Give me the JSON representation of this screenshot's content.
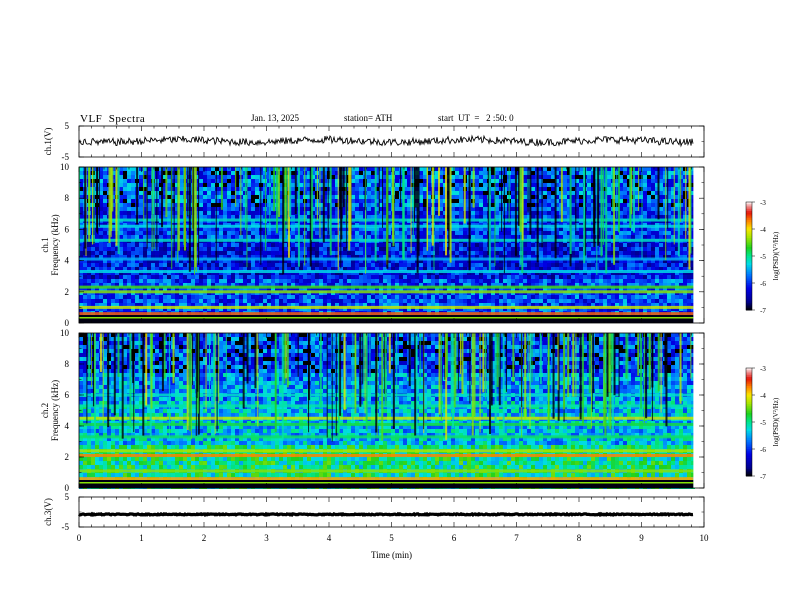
{
  "header": {
    "title": "VLF  Spectra",
    "date": "Jan. 13, 2025",
    "station": "station= ATH",
    "start": "start  UT  =   2 :50: 0"
  },
  "chart_data": [
    {
      "type": "line",
      "panel": "ch1-waveform",
      "ylabel": "ch.1(V)",
      "ylim": [
        -5,
        5
      ],
      "yticks": [
        "5",
        "-5"
      ],
      "x_range_min": [
        0,
        10
      ],
      "data_extent_min": 9.83,
      "level_v": 0.2,
      "series_color": "#000000"
    },
    {
      "type": "heatmap",
      "panel": "ch1-spectrogram",
      "ylabel": "ch.1\nFrequency  (kHz)",
      "ylim": [
        0,
        10
      ],
      "yticks": [
        "0",
        "2",
        "4",
        "6",
        "8",
        "10"
      ],
      "colorbar": {
        "label": "log(PSD)(V²/Hz)",
        "range": [
          -7,
          -3
        ],
        "ticks": [
          "-3",
          "-4",
          "-5",
          "-6",
          "-7"
        ]
      },
      "bands_khz": [
        {
          "f": 0.6,
          "level": -3.6
        },
        {
          "f": 1.0,
          "level": -4.2
        },
        {
          "f": 2.0,
          "level": -4.4
        },
        {
          "f": 2.3,
          "level": -4.6
        },
        {
          "f": 3.3,
          "level": -5.3
        },
        {
          "f": 4.1,
          "level": -5.5
        },
        {
          "f": 5.3,
          "level": -5.2
        },
        {
          "f": 6.2,
          "level": -5.3
        },
        {
          "f": 6.6,
          "level": -5.2
        }
      ]
    },
    {
      "type": "heatmap",
      "panel": "ch2-spectrogram",
      "ylabel": "ch.2\nFrequency  (kHz)",
      "ylim": [
        0,
        10
      ],
      "yticks": [
        "0",
        "2",
        "4",
        "6",
        "8",
        "10"
      ],
      "colorbar": {
        "label": "log(PSD)(V²/Hz)",
        "range": [
          -7,
          -3
        ],
        "ticks": [
          "-3",
          "-4",
          "-5",
          "-6",
          "-7"
        ]
      },
      "bands_khz": [
        {
          "f": 0.6,
          "level": -3.8
        },
        {
          "f": 1.1,
          "level": -4.4
        },
        {
          "f": 2.1,
          "level": -3.7
        },
        {
          "f": 2.4,
          "level": -4.3
        },
        {
          "f": 3.3,
          "level": -4.9
        },
        {
          "f": 4.1,
          "level": -4.8
        },
        {
          "f": 4.5,
          "level": -4.2
        },
        {
          "f": 5.3,
          "level": -5.1
        },
        {
          "f": 6.0,
          "level": -5.2
        }
      ]
    },
    {
      "type": "line",
      "panel": "ch3-waveform",
      "ylabel": "ch.3(V)",
      "ylim": [
        -5,
        5
      ],
      "yticks": [
        "5",
        "-5"
      ],
      "level_v": -0.8,
      "series_color": "#000000"
    }
  ],
  "xaxis": {
    "label": "Time  (min)",
    "range": [
      0,
      10
    ],
    "ticks": [
      "0",
      "1",
      "2",
      "3",
      "4",
      "5",
      "6",
      "7",
      "8",
      "9",
      "10"
    ]
  }
}
